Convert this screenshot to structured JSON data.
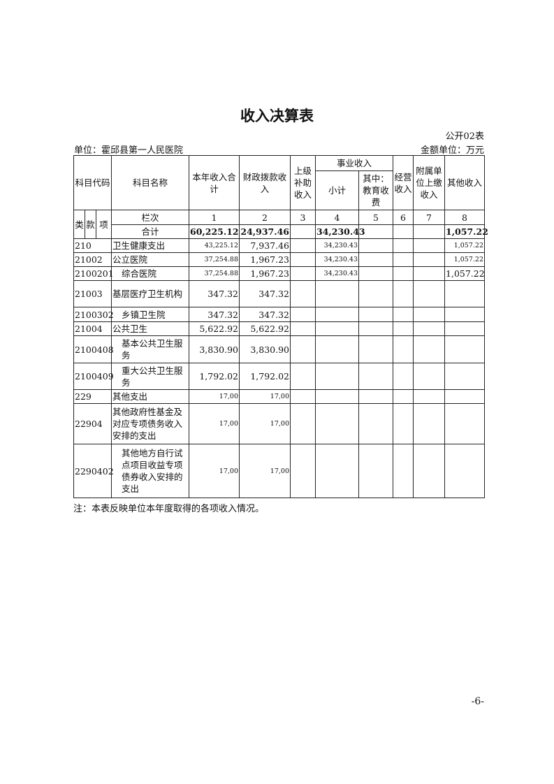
{
  "title": "收入决算表",
  "table_no": "公开02表",
  "unit": "单位：霍邱县第一人民医院",
  "money_unit": "金额单位：万元",
  "headers": {
    "code": "科目代码",
    "name": "科目名称",
    "total": "本年收入合计",
    "fiscal": "财政拨款收入",
    "superior": "上级补助收入",
    "business": "事业收入",
    "subtotal": "小计",
    "edu": "其中：教育收费",
    "operating": "经营收入",
    "affiliated": "附属单位上缴收入",
    "other": "其他收入",
    "lei": "类",
    "kuan": "款",
    "xiang": "项",
    "lanci": "栏次",
    "col_nums": [
      "1",
      "2",
      "3",
      "4",
      "5",
      "6",
      "7",
      "8"
    ],
    "sum_label": "合计"
  },
  "sum_row": {
    "total": "60,225.12",
    "fiscal": "24,937.46",
    "superior": "",
    "subtotal": "34,230.43",
    "edu": "",
    "operating": "",
    "affiliated": "",
    "other": "1,057.22"
  },
  "rows": [
    {
      "code": "210",
      "name": "卫生健康支出",
      "total": "43,225.12",
      "fiscal": "7,937.46",
      "subtotal": "34,230.43",
      "other": "1,057.22"
    },
    {
      "code": "21002",
      "name": "公立医院",
      "total": "37,254.88",
      "fiscal": "1,967.23",
      "subtotal": "34,230.43",
      "other": "1,057.22"
    },
    {
      "code": "2100201",
      "name": "综合医院",
      "total": "37,254.88",
      "fiscal": "1,967.23",
      "subtotal": "34,230.43",
      "other": "1,057.22"
    },
    {
      "code": "21003",
      "name": "基层医疗卫生机构",
      "total": "347.32",
      "fiscal": "347.32",
      "subtotal": "",
      "other": ""
    },
    {
      "code": "2100302",
      "name": "乡镇卫生院",
      "total": "347.32",
      "fiscal": "347.32",
      "subtotal": "",
      "other": ""
    },
    {
      "code": "21004",
      "name": "公共卫生",
      "total": "5,622.92",
      "fiscal": "5,622.92",
      "subtotal": "",
      "other": ""
    },
    {
      "code": "2100408",
      "name": "基本公共卫生服务",
      "total": "3,830.90",
      "fiscal": "3,830.90",
      "subtotal": "",
      "other": ""
    },
    {
      "code": "2100409",
      "name": "重大公共卫生服务",
      "total": "1,792.02",
      "fiscal": "1,792.02",
      "subtotal": "",
      "other": ""
    },
    {
      "code": "229",
      "name": "其他支出",
      "total": "17,00",
      "fiscal": "17,00",
      "subtotal": "",
      "other": ""
    },
    {
      "code": "22904",
      "name": "其他政府性基金及对应专项债务收入安排的支出",
      "total": "17,00",
      "fiscal": "17,00",
      "subtotal": "",
      "other": ""
    },
    {
      "code": "2290402",
      "name": "其他地方自行试点项目收益专项债券收入安排的支出",
      "total": "17,00",
      "fiscal": "17,00",
      "subtotal": "",
      "other": ""
    }
  ],
  "note": "注：本表反映单位本年度取得的各项收入情况。",
  "page_number": "-6-"
}
